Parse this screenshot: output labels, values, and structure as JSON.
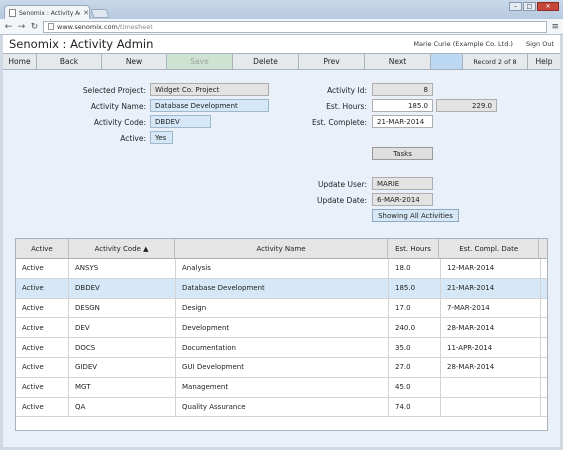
{
  "browser": {
    "tab_title": "Senomix : Activity Admin",
    "url_host": "www.senomix.com",
    "url_path": "/timesheet"
  },
  "app": {
    "title": "Senomix : Activity Admin",
    "user": "Marie Curie (Example Co. Ltd.)",
    "sign_out": "Sign Out"
  },
  "toolbar": {
    "home": "Home",
    "back": "Back",
    "new": "New",
    "save": "Save",
    "delete": "Delete",
    "prev": "Prev",
    "next": "Next",
    "record": "Record 2 of 8",
    "help": "Help"
  },
  "form": {
    "selected_project_label": "Selected Project:",
    "selected_project": "Widget Co. Project",
    "activity_name_label": "Activity Name:",
    "activity_name": "Database Development",
    "activity_code_label": "Activity Code:",
    "activity_code": "DBDEV",
    "active_label": "Active:",
    "active": "Yes",
    "activity_id_label": "Activity Id:",
    "activity_id": "8",
    "est_hours_label": "Est. Hours:",
    "est_hours": "185.0",
    "actual_hours": "229.0",
    "est_complete_label": "Est. Complete:",
    "est_complete": "21-MAR-2014",
    "tasks_button": "Tasks",
    "update_user_label": "Update User:",
    "update_user": "MARIE",
    "update_date_label": "Update Date:",
    "update_date": "6-MAR-2014",
    "showing_button": "Showing All Activities"
  },
  "table": {
    "headers": [
      "Active",
      "Activity Code ▲",
      "Activity Name",
      "Est. Hours",
      "Est. Compl. Date"
    ],
    "rows": [
      [
        "Active",
        "ANSYS",
        "Analysis",
        "18.0",
        "12-MAR-2014"
      ],
      [
        "Active",
        "DBDEV",
        "Database Development",
        "185.0",
        "21-MAR-2014"
      ],
      [
        "Active",
        "DESGN",
        "Design",
        "17.0",
        "7-MAR-2014"
      ],
      [
        "Active",
        "DEV",
        "Development",
        "240.0",
        "28-MAR-2014"
      ],
      [
        "Active",
        "DOCS",
        "Documentation",
        "35.0",
        "11-APR-2014"
      ],
      [
        "Active",
        "GIDEV",
        "GUI Development",
        "27.0",
        "28-MAR-2014"
      ],
      [
        "Active",
        "MGT",
        "Management",
        "45.0",
        ""
      ],
      [
        "Active",
        "QA",
        "Quality Assurance",
        "74.0",
        ""
      ]
    ],
    "selected_row": 1
  }
}
